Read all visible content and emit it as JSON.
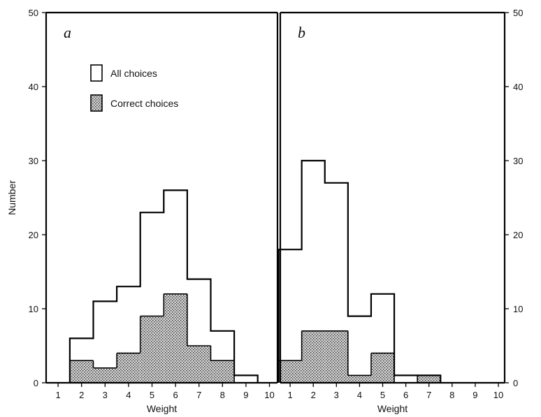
{
  "chart_data": {
    "type": "bar",
    "ylabel": "Number",
    "xlabel": "Weight",
    "ylim": [
      0,
      50
    ],
    "yticks": [
      0,
      10,
      20,
      30,
      40,
      50
    ],
    "xticks": [
      1,
      2,
      3,
      4,
      5,
      6,
      7,
      8,
      9,
      10
    ],
    "legend": {
      "placement": "top-left of panel a",
      "all_label": "All choices",
      "correct_label": "Correct choices"
    },
    "panels": [
      {
        "label": "a",
        "bins": [
          {
            "x": 2,
            "all": 6,
            "correct": 3
          },
          {
            "x": 3,
            "all": 11,
            "correct": 2
          },
          {
            "x": 4,
            "all": 13,
            "correct": 4
          },
          {
            "x": 5,
            "all": 23,
            "correct": 9
          },
          {
            "x": 6,
            "all": 26,
            "correct": 12
          },
          {
            "x": 7,
            "all": 14,
            "correct": 5
          },
          {
            "x": 8,
            "all": 7,
            "correct": 3
          },
          {
            "x": 9,
            "all": 1,
            "correct": 0
          }
        ]
      },
      {
        "label": "b",
        "bins": [
          {
            "x": 1,
            "all": 18,
            "correct": 3
          },
          {
            "x": 2,
            "all": 30,
            "correct": 7
          },
          {
            "x": 3,
            "all": 27,
            "correct": 7
          },
          {
            "x": 4,
            "all": 9,
            "correct": 1
          },
          {
            "x": 5,
            "all": 12,
            "correct": 4
          },
          {
            "x": 6,
            "all": 1,
            "correct": 0
          },
          {
            "x": 7,
            "all": 1,
            "correct": 1
          }
        ]
      }
    ]
  }
}
